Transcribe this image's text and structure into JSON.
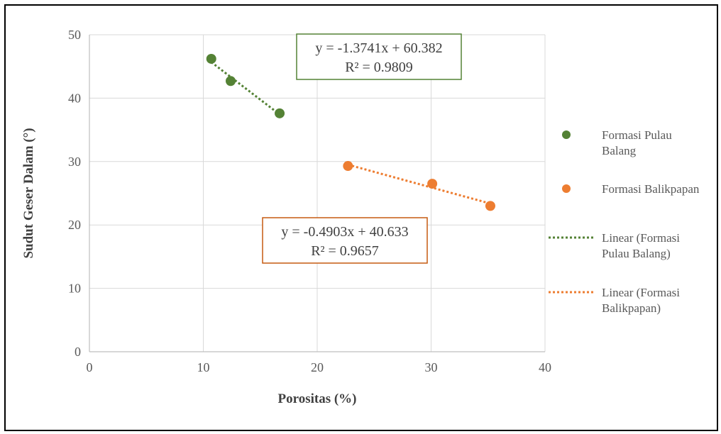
{
  "chart_data": {
    "type": "scatter",
    "title": "",
    "xlabel": "Porositas (%)",
    "ylabel": "Sudut Geser Dalam (°)",
    "xlim": [
      0,
      40
    ],
    "ylim": [
      0,
      50
    ],
    "xticks": [
      0,
      10,
      20,
      30,
      40
    ],
    "yticks": [
      0,
      10,
      20,
      30,
      40,
      50
    ],
    "grid": true,
    "legend_position": "right",
    "series": [
      {
        "name": "Formasi Pulau Balang",
        "legend_lines": [
          "Formasi Pulau",
          "Balang"
        ],
        "color": "#548235",
        "points": [
          [
            10.7,
            46.2
          ],
          [
            12.4,
            42.7
          ],
          [
            16.7,
            37.6
          ]
        ]
      },
      {
        "name": "Formasi Balikpapan",
        "legend_lines": [
          "Formasi Balikpapan"
        ],
        "color": "#ED7D31",
        "points": [
          [
            22.7,
            29.3
          ],
          [
            30.1,
            26.5
          ],
          [
            35.2,
            23.0
          ]
        ]
      }
    ],
    "trendlines": [
      {
        "name": "Linear (Formasi Pulau Balang)",
        "legend_lines": [
          "Linear (Formasi",
          "Pulau Balang)"
        ],
        "color": "#548235",
        "slope": -1.3741,
        "intercept": 60.382,
        "x_range": [
          10.7,
          16.7
        ],
        "equation": "y = -1.3741x + 60.382",
        "r2": "R² = 0.9809",
        "label_box_color": "#548235"
      },
      {
        "name": "Linear (Formasi Balikpapan)",
        "legend_lines": [
          "Linear (Formasi",
          "Balikpapan)"
        ],
        "color": "#ED7D31",
        "slope": -0.4903,
        "intercept": 40.633,
        "x_range": [
          22.7,
          35.2
        ],
        "equation": "y = -0.4903x + 40.633",
        "r2": "R² = 0.9657",
        "label_box_color": "#C55A11"
      }
    ]
  }
}
